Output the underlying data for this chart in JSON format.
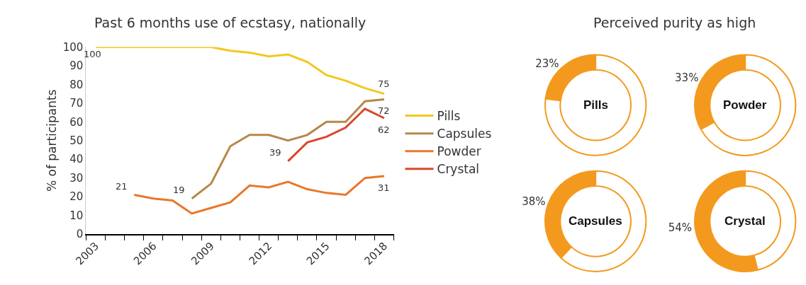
{
  "chart_data": [
    {
      "type": "line",
      "title": "Past 6 months use of ecstasy, nationally",
      "ylabel": "% of participants",
      "categories": [
        "2003",
        null,
        null,
        "2006",
        null,
        null,
        "2009",
        null,
        null,
        "2012",
        null,
        null,
        "2015",
        null,
        null,
        "2018"
      ],
      "series": [
        {
          "name": "Pills",
          "color": "#f2c81e",
          "values": [
            100,
            100,
            100,
            100,
            100,
            100,
            100,
            98,
            97,
            95,
            96,
            92,
            85,
            82,
            78,
            75
          ],
          "value_labels": [
            "100",
            null,
            null,
            null,
            null,
            null,
            null,
            null,
            null,
            null,
            null,
            null,
            null,
            null,
            null,
            "75"
          ]
        },
        {
          "name": "Capsules",
          "color": "#b8874a",
          "values": [
            null,
            null,
            null,
            null,
            null,
            19,
            27,
            47,
            53,
            53,
            50,
            53,
            60,
            60,
            71,
            72
          ],
          "value_labels": [
            null,
            null,
            null,
            null,
            null,
            "19",
            null,
            null,
            null,
            null,
            null,
            null,
            null,
            null,
            null,
            "72"
          ]
        },
        {
          "name": "Powder",
          "color": "#e8782a",
          "values": [
            null,
            null,
            21,
            19,
            18,
            11,
            14,
            17,
            26,
            25,
            28,
            24,
            22,
            21,
            30,
            31
          ],
          "value_labels": [
            null,
            null,
            "21",
            null,
            null,
            null,
            null,
            null,
            null,
            null,
            null,
            null,
            null,
            null,
            null,
            "31"
          ]
        },
        {
          "name": "Crystal",
          "color": "#d9472b",
          "values": [
            null,
            null,
            null,
            null,
            null,
            null,
            null,
            null,
            null,
            null,
            39,
            49,
            52,
            57,
            67,
            62
          ],
          "value_labels": [
            null,
            null,
            null,
            null,
            null,
            null,
            null,
            null,
            null,
            null,
            "39",
            null,
            null,
            null,
            null,
            "62"
          ]
        }
      ],
      "ylim": [
        0,
        100
      ],
      "yticks": [
        0,
        10,
        20,
        30,
        40,
        50,
        60,
        70,
        80,
        90,
        100
      ],
      "legend": "right",
      "marker": "none",
      "line_style": "solid"
    },
    {
      "type": "other",
      "title": "Perceived purity as high"
    },
    {
      "type": "donut",
      "title": "Pills",
      "categories": [
        null,
        null
      ],
      "values": [
        23,
        77
      ],
      "colors": [
        "#f39a1e",
        "#ffffff"
      ],
      "value_labels": [
        "23%",
        null
      ]
    },
    {
      "type": "donut",
      "title": "Powder",
      "categories": [
        null,
        null
      ],
      "values": [
        33,
        67
      ],
      "colors": [
        "#f39a1e",
        "#ffffff"
      ],
      "value_labels": [
        "33%",
        null
      ]
    },
    {
      "type": "donut",
      "title": "Capsules",
      "categories": [
        null,
        null
      ],
      "values": [
        38,
        62
      ],
      "colors": [
        "#f39a1e",
        "#ffffff"
      ],
      "value_labels": [
        "38%",
        null
      ]
    },
    {
      "type": "donut",
      "title": "Crystal",
      "categories": [
        null,
        null
      ],
      "values": [
        54,
        46
      ],
      "colors": [
        "#f39a1e",
        "#ffffff"
      ],
      "value_labels": [
        "54%",
        null
      ]
    }
  ]
}
